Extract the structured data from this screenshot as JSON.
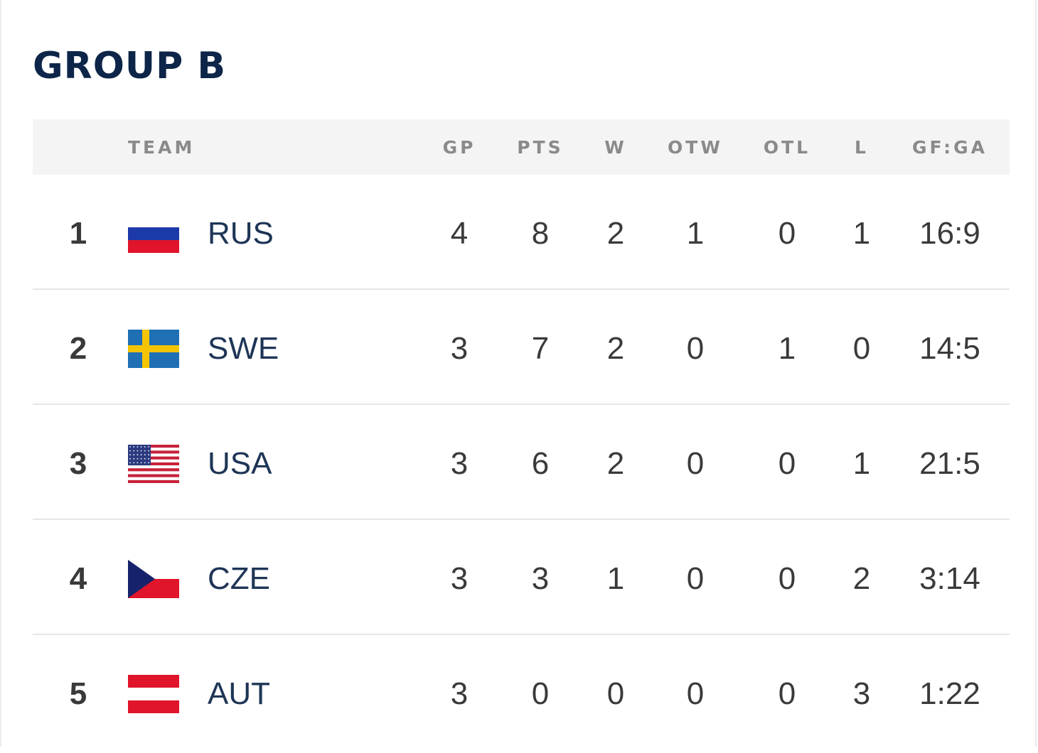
{
  "group_title": "GROUP B",
  "columns": {
    "team": "TEAM",
    "gp": "GP",
    "pts": "PTS",
    "w": "W",
    "otw": "OTW",
    "otl": "OTL",
    "l": "L",
    "gfga": "GF:GA"
  },
  "rows": [
    {
      "rank": "1",
      "flag": "russia-flag-icon",
      "team": "RUS",
      "gp": "4",
      "pts": "8",
      "w": "2",
      "otw": "1",
      "otl": "0",
      "l": "1",
      "gfga": "16:9"
    },
    {
      "rank": "2",
      "flag": "sweden-flag-icon",
      "team": "SWE",
      "gp": "3",
      "pts": "7",
      "w": "2",
      "otw": "0",
      "otl": "1",
      "l": "0",
      "gfga": "14:5"
    },
    {
      "rank": "3",
      "flag": "usa-flag-icon",
      "team": "USA",
      "gp": "3",
      "pts": "6",
      "w": "2",
      "otw": "0",
      "otl": "0",
      "l": "1",
      "gfga": "21:5"
    },
    {
      "rank": "4",
      "flag": "czech-flag-icon",
      "team": "CZE",
      "gp": "3",
      "pts": "3",
      "w": "1",
      "otw": "0",
      "otl": "0",
      "l": "2",
      "gfga": "3:14"
    },
    {
      "rank": "5",
      "flag": "austria-flag-icon",
      "team": "AUT",
      "gp": "3",
      "pts": "0",
      "w": "0",
      "otw": "0",
      "otl": "0",
      "l": "3",
      "gfga": "1:22"
    }
  ],
  "colors": {
    "title": "#0c2548",
    "header_bg": "#f4f4f4",
    "header_text": "#8a8a8a",
    "cell_text": "#3a3a3a",
    "team_text": "#1e3556",
    "separator": "#e6e6e6"
  }
}
